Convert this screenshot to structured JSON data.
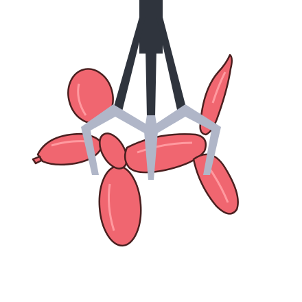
{
  "illustration": {
    "subject": "claw-grabbing-balloon-dog",
    "colors": {
      "background": "#ffffff",
      "balloon_fill": "#f06670",
      "balloon_outline": "#4a1f1f",
      "balloon_highlight": "#ff9aa0",
      "claw_arm": "#2f343d",
      "claw_prong": "#b0b6c8"
    },
    "icons": [
      "balloon-dog-icon",
      "claw-machine-icon"
    ]
  }
}
